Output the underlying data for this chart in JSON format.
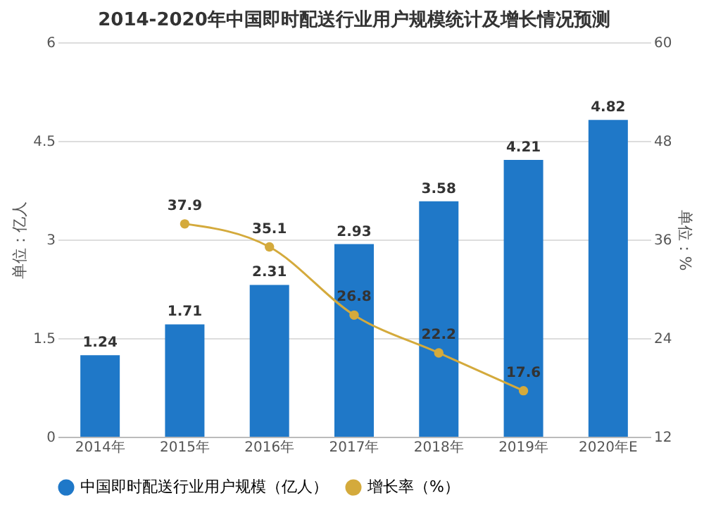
{
  "chart_data": {
    "type": "bar",
    "title": "2014-2020年中国即时配送行业用户规模统计及增长情况预测",
    "categories": [
      "2014年",
      "2015年",
      "2016年",
      "2017年",
      "2018年",
      "2019年",
      "2020年E"
    ],
    "ylabel": "单位：亿人",
    "y2label": "单位：%",
    "series": [
      {
        "name": "中国即时配送行业用户规模（亿人）",
        "color": "#1f78c8",
        "values": [
          1.24,
          1.71,
          2.31,
          2.93,
          3.58,
          4.21,
          4.82
        ]
      },
      {
        "name": "增长率（%）",
        "type": "line",
        "axis": "y2",
        "color": "#d4aa3c",
        "marker": "circle",
        "values": [
          null,
          37.9,
          35.1,
          26.8,
          22.2,
          17.6,
          null
        ]
      }
    ],
    "data_labels": true,
    "ylim": [
      0,
      6
    ],
    "yticks": [
      0,
      1.5,
      3,
      4.5,
      6
    ],
    "y2lim": [
      12,
      60
    ],
    "y2ticks": [
      12,
      24,
      36,
      48,
      60
    ],
    "grid": "y",
    "legend": "bottom"
  }
}
